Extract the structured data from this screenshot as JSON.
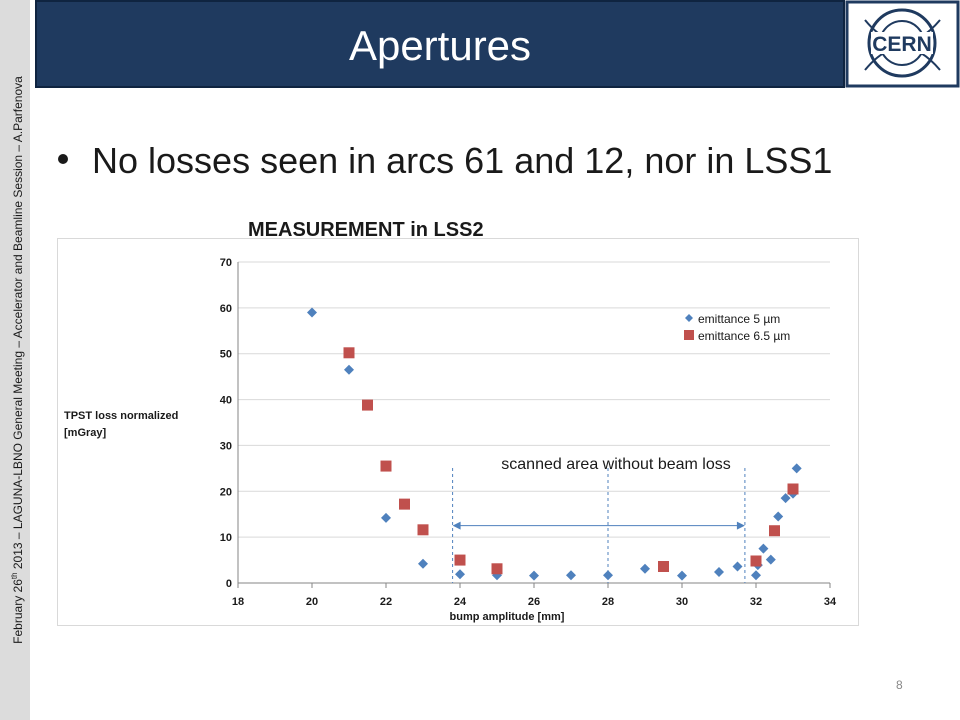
{
  "slide": {
    "title": "Apertures",
    "side_text_pre": "February 26",
    "side_text_sup": "th",
    "side_text_post": " 2013 – LAGUNA-LBNO General Meeting – Accelerator and Beamline Session – A.Parfenova",
    "bullet": "No losses seen in arcs 61 and 12, nor in LSS1",
    "page_number": "8",
    "logo_text": "CERN"
  },
  "colors": {
    "title_bar": "#1f3a5f",
    "series1": "#4f81bd",
    "series2": "#c0504d",
    "annotation": "#4f81bd"
  },
  "chart_data": {
    "type": "scatter",
    "title": "MEASUREMENT in LSS2",
    "xlabel": "bump amplitude [mm]",
    "ylabel_lines": [
      "TPST loss normalized",
      "[mGray]"
    ],
    "xlim": [
      18,
      34
    ],
    "ylim": [
      0,
      70
    ],
    "xticks": [
      18,
      20,
      22,
      24,
      26,
      28,
      30,
      32,
      34
    ],
    "yticks": [
      0,
      10,
      20,
      30,
      40,
      50,
      60,
      70
    ],
    "grid": true,
    "legend_position": "top-right",
    "series": [
      {
        "name": "emittance 5 µm",
        "marker": "diamond",
        "color": "#4f81bd",
        "points": [
          [
            20,
            59
          ],
          [
            21,
            46.5
          ],
          [
            22,
            14.2
          ],
          [
            23,
            4.2
          ],
          [
            24,
            1.9
          ],
          [
            25,
            1.7
          ],
          [
            26,
            1.6
          ],
          [
            27,
            1.7
          ],
          [
            28,
            1.7
          ],
          [
            29,
            3.1
          ],
          [
            30,
            1.6
          ],
          [
            31,
            2.4
          ],
          [
            31.5,
            3.6
          ],
          [
            32,
            1.7
          ],
          [
            32.05,
            3.9
          ],
          [
            32.2,
            7.5
          ],
          [
            32.4,
            5.1
          ],
          [
            32.6,
            14.5
          ],
          [
            32.8,
            18.5
          ],
          [
            33.0,
            19.5
          ],
          [
            33.1,
            25
          ]
        ]
      },
      {
        "name": "emittance 6.5 µm",
        "marker": "square",
        "color": "#c0504d",
        "points": [
          [
            21,
            50.2
          ],
          [
            21.5,
            38.8
          ],
          [
            22,
            25.5
          ],
          [
            22.5,
            17.2
          ],
          [
            23,
            11.6
          ],
          [
            24,
            5
          ],
          [
            25,
            3.1
          ],
          [
            29.5,
            3.6
          ],
          [
            32,
            4.8
          ],
          [
            32.5,
            11.4
          ],
          [
            33,
            20.5
          ]
        ]
      }
    ],
    "annotation": {
      "text": "scanned area without beam loss",
      "dashed_lines_x": [
        23.8,
        28,
        31.7
      ],
      "arrow_x": [
        23.8,
        31.7
      ],
      "arrow_y": 12.5
    }
  }
}
